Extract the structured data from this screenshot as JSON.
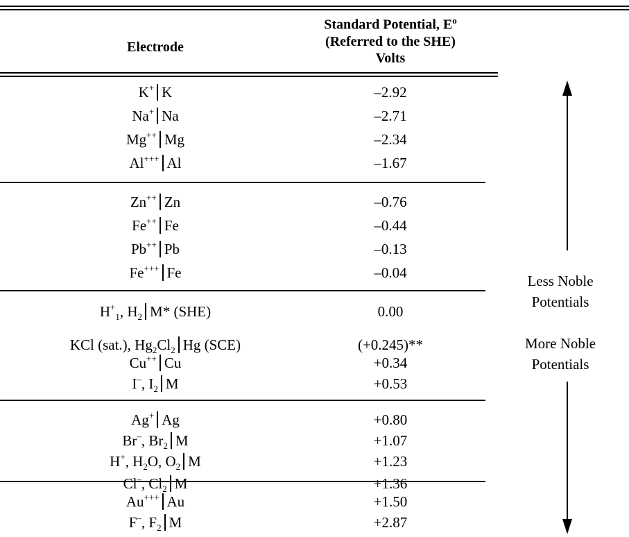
{
  "header": {
    "electrode": "Electrode",
    "potential_line1": "Standard Potential, E",
    "potential_super": "o",
    "potential_line2": "(Referred to the SHE)",
    "potential_line3": "Volts"
  },
  "rows": [
    {
      "name": "K",
      "sup": "+",
      "after": "K",
      "value": "–2.92"
    },
    {
      "name": "Na",
      "sup": "+",
      "after": "Na",
      "value": "–2.71"
    },
    {
      "name": "Mg",
      "sup": "++",
      "after": "Mg",
      "value": "–2.34"
    },
    {
      "name": "Al",
      "sup": "+++",
      "after": "Al",
      "value": "–1.67"
    },
    {
      "name": "Zn",
      "sup": "++",
      "after": "Zn",
      "value": "–0.76"
    },
    {
      "name": "Fe",
      "sup": "++",
      "after": "Fe",
      "value": "–0.44"
    },
    {
      "name": "Pb",
      "sup": "++",
      "after": "Pb",
      "value": "–0.13"
    },
    {
      "name": "Fe",
      "sup": "+++",
      "after": "Fe",
      "value": "–0.04"
    },
    {
      "value": "0.00"
    },
    {
      "value": "(+0.245)**"
    },
    {
      "name": "Cu",
      "sup": "++",
      "after": "Cu",
      "value": "+0.34"
    },
    {
      "value": "+0.53"
    },
    {
      "name": "Ag",
      "sup": "+",
      "after": "Ag",
      "value": "+0.80"
    },
    {
      "value": "+1.07"
    },
    {
      "value": "+1.23"
    },
    {
      "value": "+1.36"
    },
    {
      "name": "Au",
      "sup": "+++",
      "after": "Au",
      "value": "+1.50"
    },
    {
      "value": "+2.87"
    }
  ],
  "labels": {
    "she_text": "M* (SHE)",
    "sce_prefix": "KCl (sat.), Hg",
    "sce_sub1": "2",
    "sce_mid": "Cl",
    "sce_sub2": "2",
    "sce_suffix": "Hg (SCE)",
    "H": "H",
    "H2": "H",
    "I": "I",
    "M": "M",
    "Br": "Br",
    "H2O": "H",
    "Cl": "Cl",
    "F": "F"
  },
  "notes": {
    "less_noble_1": "Less Noble",
    "less_noble_2": "Potentials",
    "more_noble_1": "More Noble",
    "more_noble_2": "Potentials"
  }
}
